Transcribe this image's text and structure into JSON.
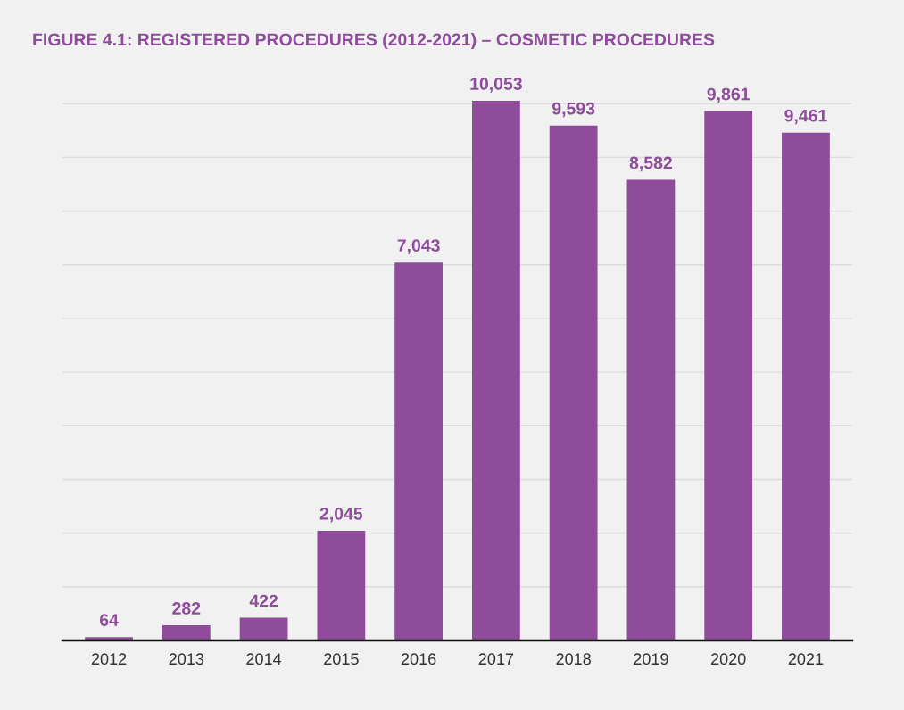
{
  "chart_data": {
    "type": "bar",
    "title": "FIGURE 4.1: REGISTERED PROCEDURES (2012-2021) – COSMETIC PROCEDURES",
    "categories": [
      "2012",
      "2013",
      "2014",
      "2015",
      "2016",
      "2017",
      "2018",
      "2019",
      "2020",
      "2021"
    ],
    "values": [
      64,
      282,
      422,
      2045,
      7043,
      10053,
      9593,
      8582,
      9861,
      9461
    ],
    "value_labels": [
      "64",
      "282",
      "422",
      "2,045",
      "7,043",
      "10,053",
      "9,593",
      "8,582",
      "9,861",
      "9,461"
    ],
    "color": "#8e4c9a",
    "yticks": [
      {
        "value": 0,
        "label": null
      },
      {
        "value": 1000,
        "label": null
      },
      {
        "value": 2000,
        "label": null
      },
      {
        "value": 3000,
        "label": null
      },
      {
        "value": 4000,
        "label": null
      },
      {
        "value": 5000,
        "label": null
      },
      {
        "value": 6000,
        "label": null
      },
      {
        "value": 7000,
        "label": null
      },
      {
        "value": 8000,
        "label": null
      },
      {
        "value": 9000,
        "label": null
      },
      {
        "value": 10000,
        "label": null
      }
    ],
    "grid": "y",
    "tick_labels": "x"
  }
}
